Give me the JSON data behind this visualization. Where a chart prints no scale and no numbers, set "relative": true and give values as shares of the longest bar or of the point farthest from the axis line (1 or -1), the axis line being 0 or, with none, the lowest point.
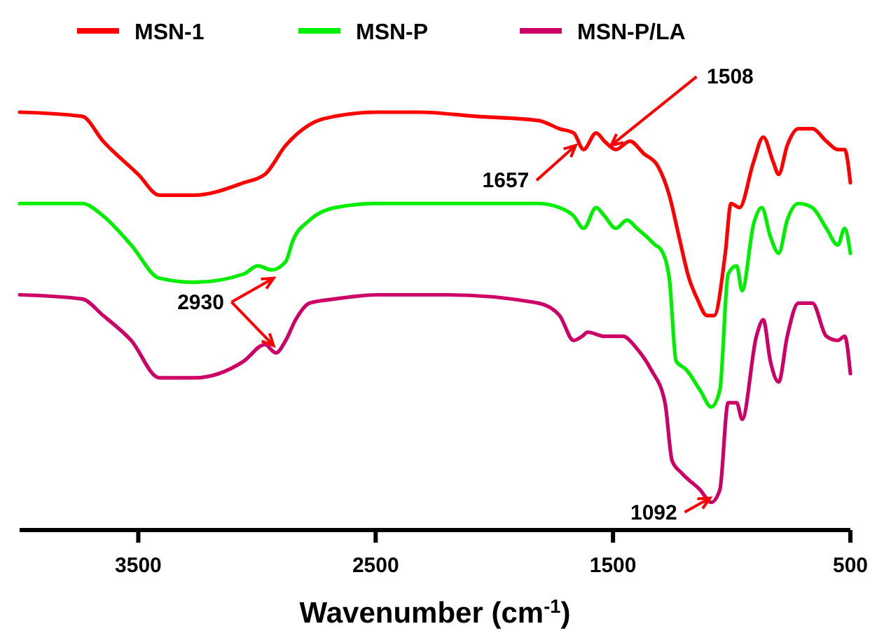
{
  "chart_data": {
    "type": "line",
    "relative": true,
    "xlabel": "Wavenumber (cm$^{-1}$)",
    "xlim": [
      4000,
      500
    ],
    "xticks": [
      3500,
      2500,
      1500,
      500
    ],
    "tick_labels": "x",
    "legend": "top",
    "grid": false,
    "series": [
      {
        "name": "MSN-1",
        "color": "#ff0000",
        "x": [
          4000,
          3737,
          3648,
          3500,
          3411,
          3263,
          3056,
          2967,
          2879,
          2778,
          2672,
          2494,
          2317,
          2080,
          1814,
          1725,
          1666,
          1624,
          1571,
          1536,
          1488,
          1429,
          1370,
          1311,
          1263,
          1222,
          1180,
          1145,
          1104,
          1074,
          1027,
          1003,
          967,
          908,
          867,
          825,
          802,
          766,
          719,
          660,
          601,
          553,
          524,
          500
        ],
        "values": [
          1.0,
          0.99,
          0.93,
          0.85,
          0.8,
          0.8,
          0.83,
          0.85,
          0.92,
          0.97,
          0.99,
          1.0,
          1.0,
          0.99,
          0.98,
          0.96,
          0.95,
          0.91,
          0.95,
          0.93,
          0.91,
          0.93,
          0.9,
          0.87,
          0.8,
          0.7,
          0.6,
          0.55,
          0.51,
          0.51,
          0.66,
          0.78,
          0.77,
          0.88,
          0.94,
          0.88,
          0.85,
          0.92,
          0.96,
          0.96,
          0.93,
          0.91,
          0.91,
          0.83
        ]
      },
      {
        "name": "MSN-P",
        "color": "#00ee00",
        "x": [
          4000,
          3737,
          3648,
          3530,
          3411,
          3263,
          3056,
          2997,
          2938,
          2879,
          2849,
          2778,
          2672,
          2494,
          2257,
          2021,
          1814,
          1725,
          1666,
          1624,
          1571,
          1536,
          1488,
          1441,
          1399,
          1358,
          1322,
          1299,
          1263,
          1234,
          1192,
          1133,
          1086,
          1050,
          1015,
          979,
          956,
          908,
          873,
          837,
          802,
          766,
          719,
          660,
          601,
          553,
          524,
          500
        ],
        "values": [
          0.78,
          0.78,
          0.75,
          0.68,
          0.6,
          0.59,
          0.61,
          0.63,
          0.62,
          0.64,
          0.69,
          0.74,
          0.77,
          0.78,
          0.78,
          0.78,
          0.78,
          0.77,
          0.75,
          0.72,
          0.77,
          0.75,
          0.72,
          0.74,
          0.72,
          0.7,
          0.68,
          0.67,
          0.6,
          0.4,
          0.38,
          0.33,
          0.29,
          0.33,
          0.61,
          0.63,
          0.57,
          0.73,
          0.77,
          0.7,
          0.66,
          0.74,
          0.78,
          0.77,
          0.72,
          0.68,
          0.72,
          0.66
        ]
      },
      {
        "name": "MSN-P/LA",
        "color": "#cc0066",
        "x": [
          4000,
          3737,
          3648,
          3530,
          3411,
          3263,
          3056,
          2967,
          2920,
          2879,
          2837,
          2778,
          2672,
          2494,
          2198,
          1814,
          1725,
          1666,
          1630,
          1607,
          1536,
          1459,
          1399,
          1340,
          1281,
          1251,
          1210,
          1133,
          1086,
          1050,
          1015,
          979,
          956,
          896,
          867,
          837,
          802,
          766,
          719,
          660,
          601,
          553,
          524,
          500
        ],
        "values": [
          0.56,
          0.55,
          0.51,
          0.45,
          0.36,
          0.36,
          0.4,
          0.44,
          0.42,
          0.45,
          0.5,
          0.54,
          0.55,
          0.56,
          0.56,
          0.54,
          0.51,
          0.45,
          0.46,
          0.47,
          0.46,
          0.46,
          0.43,
          0.38,
          0.3,
          0.16,
          0.13,
          0.09,
          0.06,
          0.09,
          0.3,
          0.3,
          0.26,
          0.46,
          0.5,
          0.4,
          0.35,
          0.46,
          0.54,
          0.54,
          0.46,
          0.45,
          0.46,
          0.37
        ]
      }
    ],
    "annotations": [
      {
        "text": "1508",
        "x": 1508,
        "y": 0.92
      },
      {
        "text": "1657",
        "x": 1657,
        "y": 0.92
      },
      {
        "text": "2930",
        "x": 2930,
        "y": 0.6
      },
      {
        "text": "1092",
        "x": 1092,
        "y": 0.07
      }
    ]
  }
}
